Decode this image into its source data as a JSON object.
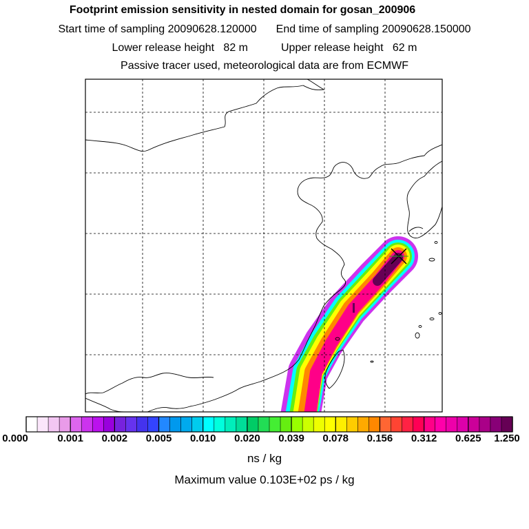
{
  "header": {
    "title": "Footprint emission sensitivity in nested domain for gosan_200906",
    "start_label": "Start time of sampling",
    "start_value": "20090628.120000",
    "end_label": "End time of sampling",
    "end_value": "20090628.150000",
    "lower_label": "Lower release height",
    "lower_value": "82 m",
    "upper_label": "Upper release height",
    "upper_value": "62 m",
    "note": "Passive tracer used, meteorological data are from ECMWF"
  },
  "colorbar": {
    "tick_labels": [
      "0.000",
      "0.001",
      "0.002",
      "0.005",
      "0.010",
      "0.020",
      "0.039",
      "0.078",
      "0.156",
      "0.312",
      "0.625",
      "1.250"
    ],
    "colors": [
      "#ffffff",
      "#fbe6fb",
      "#f3c6f3",
      "#e99be9",
      "#dd66ee",
      "#cc33ee",
      "#bb11ee",
      "#9900dd",
      "#7722dd",
      "#6633ee",
      "#4433ee",
      "#3344ff",
      "#2288ff",
      "#0099ee",
      "#00aaee",
      "#00ccee",
      "#00ffff",
      "#00ffdd",
      "#00eebb",
      "#00dd99",
      "#00cc66",
      "#22dd55",
      "#44ee33",
      "#66ee11",
      "#99ff00",
      "#ccff00",
      "#eeff00",
      "#ffff00",
      "#ffee00",
      "#ffcc00",
      "#ffaa00",
      "#ff8800",
      "#ff6633",
      "#ff4433",
      "#ff2244",
      "#ff0055",
      "#ff0088",
      "#ff00aa",
      "#ee00aa",
      "#dd00aa",
      "#cc0099",
      "#aa0088",
      "#880077",
      "#660055"
    ],
    "unit": "ns / kg",
    "max_value_text": "Maximum value  0.103E+02 ps / kg"
  },
  "map": {
    "plume_colors": {
      "outer": "#cc33ee",
      "cyan": "#00ffff",
      "green": "#66ee11",
      "yellow": "#ffff00",
      "orange": "#ff8800",
      "pink": "#ff0088",
      "dark": "#660055"
    },
    "receptor_symbol": "X"
  }
}
